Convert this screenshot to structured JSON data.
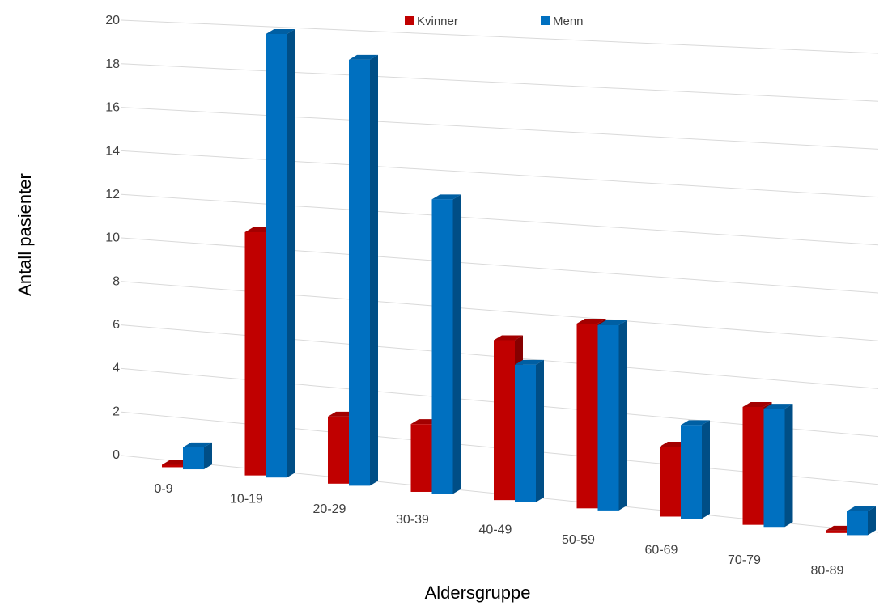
{
  "chart_data": {
    "type": "bar",
    "style": "3d-perspective",
    "categories": [
      "0-9",
      "10-19",
      "20-29",
      "30-39",
      "40-49",
      "50-59",
      "60-69",
      "70-79",
      "80-89"
    ],
    "series": [
      {
        "name": "Kvinner",
        "color": "#c00000",
        "values": [
          0,
          11,
          3,
          3,
          7,
          8,
          3,
          5,
          0
        ]
      },
      {
        "name": "Menn",
        "color": "#0070c0",
        "values": [
          1,
          20,
          19,
          13,
          6,
          8,
          4,
          5,
          1
        ]
      }
    ],
    "xlabel": "Aldersgruppe",
    "ylabel": "Antall pasienter",
    "ylim": [
      0,
      20
    ],
    "yticks": [
      "0",
      "2",
      "4",
      "6",
      "8",
      "10",
      "12",
      "14",
      "16",
      "18",
      "20"
    ],
    "grid": true,
    "legend_position": "top"
  }
}
